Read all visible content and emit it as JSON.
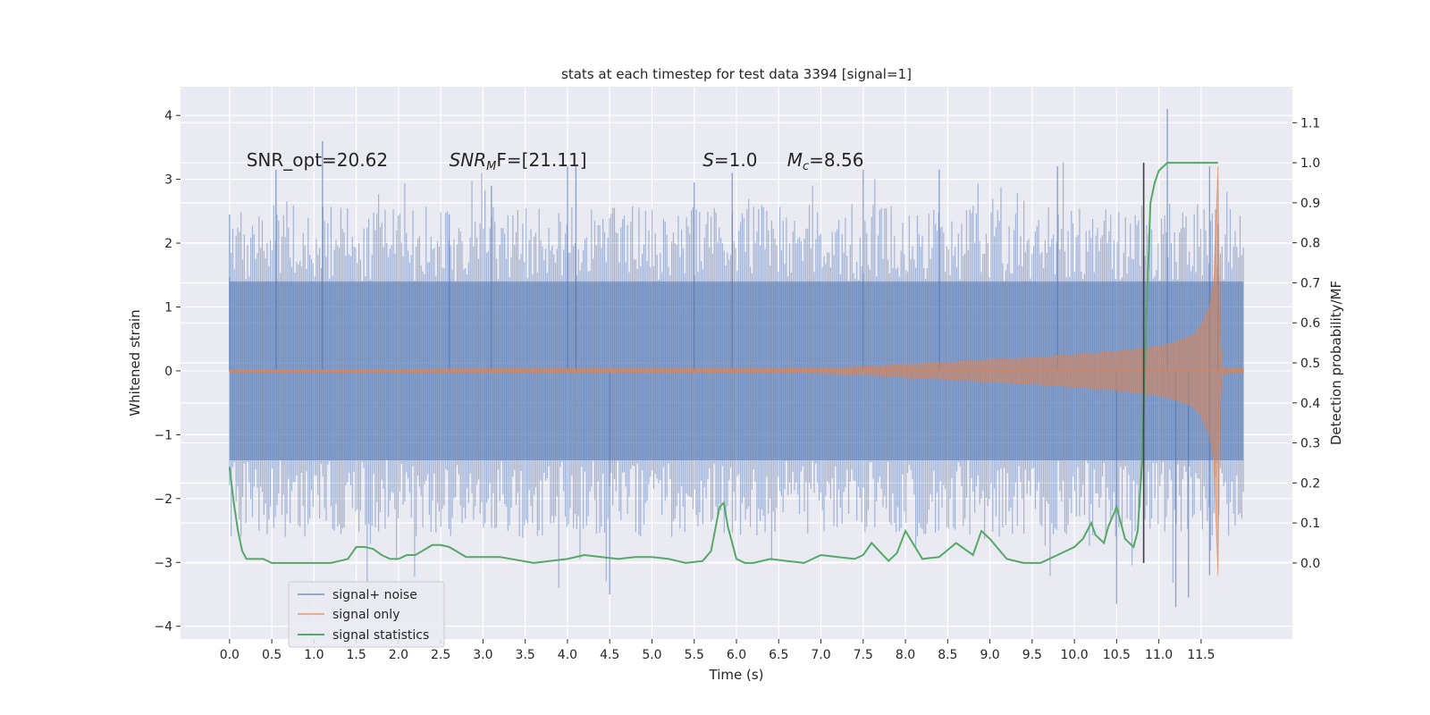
{
  "chart_data": {
    "type": "line",
    "title": "stats at each timestep for test data 3394 [signal=1]",
    "xlabel": "Time (s)",
    "ylabel_left": "Whitened strain",
    "ylabel_right": "Detection probability/MF",
    "xlim": [
      -0.58,
      12.58
    ],
    "ylim_left": [
      -4.2,
      4.45
    ],
    "ylim_right": [
      -0.19,
      1.19
    ],
    "x_ticks": [
      "0.0",
      "0.5",
      "1.0",
      "1.5",
      "2.0",
      "2.5",
      "3.0",
      "3.5",
      "4.0",
      "4.5",
      "5.0",
      "5.5",
      "6.0",
      "6.5",
      "7.0",
      "7.5",
      "8.0",
      "8.5",
      "9.0",
      "9.5",
      "10.0",
      "10.5",
      "11.0",
      "11.5"
    ],
    "y_ticks_left": [
      "−4",
      "−3",
      "−2",
      "−1",
      "0",
      "1",
      "2",
      "3",
      "4"
    ],
    "y_ticks_right": [
      "0.0",
      "0.1",
      "0.2",
      "0.3",
      "0.4",
      "0.5",
      "0.6",
      "0.7",
      "0.8",
      "0.9",
      "1.0",
      "1.1"
    ],
    "grid": true,
    "legend_position": "lower-left",
    "annotations": [
      {
        "prefix": "SNR_opt=20.62",
        "x": 0.2
      },
      {
        "base": "SNR",
        "sub": "M",
        "suffix": "F=[21.11]",
        "x": 2.6
      },
      {
        "base": "S",
        "suffix": "=1.0",
        "x": 5.6
      },
      {
        "base": "M",
        "sub": "c",
        "suffix": "=8.56",
        "x": 6.6
      }
    ],
    "annotation_y": 3.3,
    "vline": {
      "x": 10.82,
      "ymin": 0.0,
      "ymax": 1.0,
      "color": "#404040"
    },
    "series": [
      {
        "name": "signal+ noise",
        "color": "#4c72b0",
        "axis": "left",
        "x_range": [
          0.0,
          12.0
        ],
        "band_core": 1.4,
        "peak_positive_max": 4.1,
        "peak_negative_min": -3.7,
        "spikes": [
          [
            0.0,
            2.45
          ],
          [
            0.55,
            3.15
          ],
          [
            1.1,
            3.6
          ],
          [
            2.6,
            2.45
          ],
          [
            3.1,
            2.9
          ],
          [
            4.0,
            3.2
          ],
          [
            4.1,
            3.2
          ],
          [
            4.5,
            -3.5
          ],
          [
            5.5,
            2.95
          ],
          [
            5.95,
            3.1
          ],
          [
            7.5,
            3.15
          ],
          [
            8.4,
            3.15
          ],
          [
            9.8,
            3.2
          ],
          [
            10.5,
            -3.65
          ],
          [
            11.1,
            4.1
          ],
          [
            11.2,
            -3.7
          ],
          [
            11.35,
            -3.55
          ],
          [
            11.6,
            3.2
          ],
          [
            11.6,
            -3.2
          ],
          [
            11.7,
            2.3
          ]
        ]
      },
      {
        "name": "signal only",
        "color": "#dd8452",
        "axis": "left",
        "x": [
          0,
          1,
          2,
          3,
          4,
          5,
          6,
          6.5,
          7,
          7.5,
          8,
          8.5,
          9,
          9.5,
          10,
          10.5,
          11,
          11.2,
          11.4,
          11.5,
          11.6,
          11.65,
          11.7,
          11.72,
          11.75,
          12.0
        ],
        "envelope": [
          0.02,
          0.02,
          0.02,
          0.03,
          0.03,
          0.03,
          0.03,
          0.03,
          0.04,
          0.06,
          0.1,
          0.13,
          0.17,
          0.2,
          0.25,
          0.3,
          0.38,
          0.45,
          0.55,
          0.7,
          1.0,
          1.4,
          3.2,
          0.6,
          0.05,
          0.03
        ]
      },
      {
        "name": "signal statistics",
        "color": "#55a868",
        "axis": "right",
        "x": [
          0,
          0.05,
          0.1,
          0.15,
          0.2,
          0.3,
          0.4,
          0.5,
          0.6,
          0.8,
          1.0,
          1.2,
          1.4,
          1.5,
          1.6,
          1.7,
          1.8,
          1.9,
          2.0,
          2.1,
          2.2,
          2.4,
          2.5,
          2.6,
          2.8,
          3.0,
          3.2,
          3.6,
          4.0,
          4.2,
          4.4,
          4.6,
          4.8,
          5.0,
          5.2,
          5.4,
          5.6,
          5.7,
          5.8,
          5.85,
          5.9,
          6.0,
          6.1,
          6.2,
          6.4,
          6.6,
          6.8,
          7.0,
          7.2,
          7.4,
          7.5,
          7.6,
          7.8,
          7.9,
          8.0,
          8.2,
          8.4,
          8.6,
          8.8,
          8.9,
          9.0,
          9.2,
          9.4,
          9.6,
          9.8,
          10.0,
          10.1,
          10.2,
          10.25,
          10.35,
          10.4,
          10.5,
          10.6,
          10.7,
          10.75,
          10.8,
          10.85,
          10.9,
          10.95,
          11.0,
          11.1,
          11.3,
          11.5,
          11.7
        ],
        "values": [
          0.24,
          0.15,
          0.08,
          0.03,
          0.01,
          0.01,
          0.01,
          0.0,
          0.0,
          0.0,
          0.0,
          0.0,
          0.01,
          0.04,
          0.04,
          0.035,
          0.02,
          0.01,
          0.01,
          0.02,
          0.02,
          0.045,
          0.045,
          0.04,
          0.015,
          0.015,
          0.015,
          0.0,
          0.01,
          0.02,
          0.015,
          0.01,
          0.015,
          0.015,
          0.01,
          0.0,
          0.005,
          0.03,
          0.14,
          0.15,
          0.09,
          0.01,
          0.0,
          0.0,
          0.01,
          0.005,
          0.0,
          0.02,
          0.015,
          0.01,
          0.02,
          0.05,
          0.005,
          0.025,
          0.08,
          0.01,
          0.015,
          0.05,
          0.02,
          0.08,
          0.06,
          0.01,
          0.0,
          0.0,
          0.02,
          0.04,
          0.06,
          0.1,
          0.07,
          0.05,
          0.09,
          0.14,
          0.06,
          0.04,
          0.08,
          0.25,
          0.6,
          0.9,
          0.95,
          0.98,
          1.0,
          1.0,
          1.0,
          1.0
        ]
      }
    ]
  }
}
